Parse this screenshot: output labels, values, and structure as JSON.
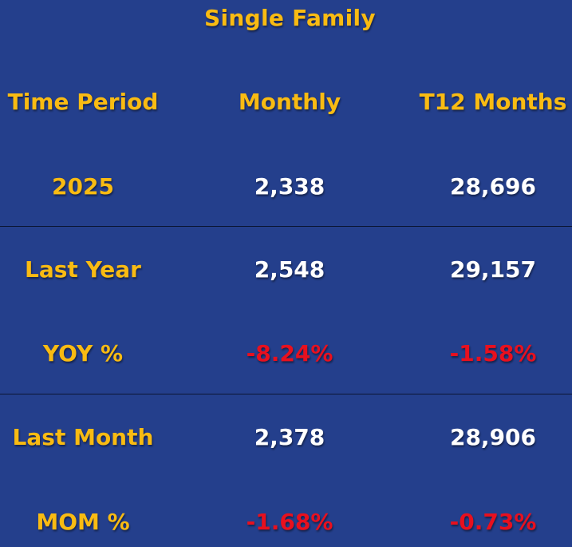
{
  "title": "Single Family",
  "header": {
    "col1": "Time Period",
    "col2": "Monthly",
    "col3": "T12 Months"
  },
  "rows": [
    {
      "label": "2025",
      "monthly": "2,338",
      "t12": "28,696"
    },
    {
      "label": "Last Year",
      "monthly": "2,548",
      "t12": "29,157"
    },
    {
      "label": "YOY %",
      "monthly": "-8.24%",
      "t12": "-1.58%"
    },
    {
      "label": "Last Month",
      "monthly": "2,378",
      "t12": "28,906"
    },
    {
      "label": "MOM %",
      "monthly": "-1.68%",
      "t12": "-0.73%"
    }
  ],
  "colors": {
    "background": "#243f8c",
    "label": "#f9bb12",
    "value": "#ffffff",
    "negative": "#e8101e"
  }
}
